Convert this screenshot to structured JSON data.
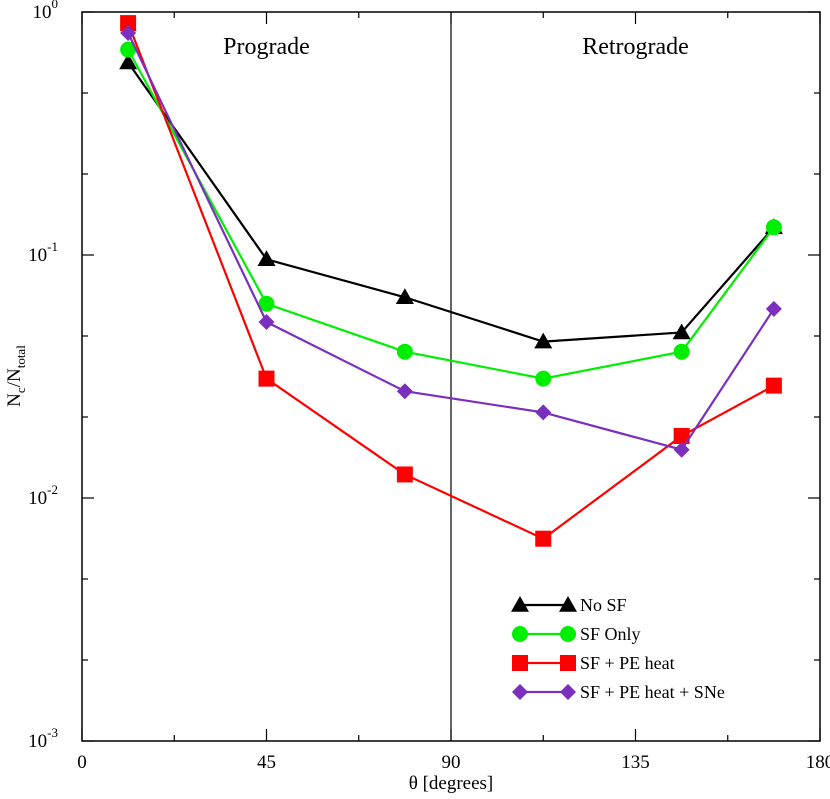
{
  "chart_data": {
    "type": "line",
    "title": "",
    "xlabel": "θ [degrees]",
    "ylabel": {
      "main": "N",
      "sub1": "c",
      "sep": "/N",
      "sub2": "total"
    },
    "xlim": [
      0,
      180
    ],
    "ylim": [
      0.001,
      1
    ],
    "yscale": "log",
    "xticks": [
      0,
      45,
      90,
      135,
      180
    ],
    "yticks": [
      {
        "value": 0.001,
        "base": "10",
        "exp": "-3"
      },
      {
        "value": 0.01,
        "base": "10",
        "exp": "-2"
      },
      {
        "value": 0.1,
        "base": "10",
        "exp": "-1"
      },
      {
        "value": 1,
        "base": "10",
        "exp": "0"
      }
    ],
    "grid": false,
    "legend_position": "bottom-right",
    "divider_x": 90,
    "regions": [
      {
        "label": "Prograde",
        "x": 45
      },
      {
        "label": "Retrograde",
        "x": 135
      }
    ],
    "x": [
      11.25,
      45,
      78.75,
      112.5,
      146.25,
      168.75
    ],
    "series": [
      {
        "name": "No SF",
        "color": "#000000",
        "marker": "triangle",
        "x": [
          11.25,
          45,
          78.75,
          112.5,
          146.25,
          168.75
        ],
        "values": [
          0.62,
          0.096,
          0.067,
          0.044,
          0.048,
          0.13
        ]
      },
      {
        "name": "SF Only",
        "color": "#00ee00",
        "marker": "circle",
        "x": [
          11.25,
          45,
          78.75,
          112.5,
          146.25,
          168.75
        ],
        "values": [
          0.7,
          0.063,
          0.04,
          0.031,
          0.04,
          0.13
        ]
      },
      {
        "name": "SF + PE heat",
        "color": "#ff0000",
        "marker": "square",
        "x": [
          11.25,
          45,
          78.75,
          112.5,
          146.25,
          168.75
        ],
        "values": [
          0.9,
          0.031,
          0.0125,
          0.0068,
          0.018,
          0.029
        ]
      },
      {
        "name": "SF + PE heat + SNe",
        "color": "#7b2fbe",
        "marker": "diamond",
        "x": [
          11.25,
          45,
          78.75,
          112.5,
          146.25,
          168.75
        ],
        "values": [
          0.82,
          0.053,
          0.0275,
          0.0225,
          0.0158,
          0.06
        ]
      }
    ]
  }
}
